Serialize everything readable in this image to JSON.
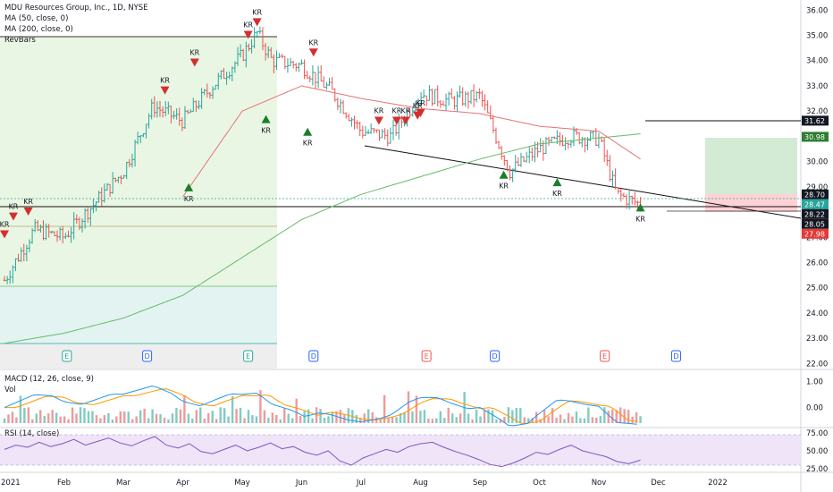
{
  "header": {
    "title": "MDU Resources Group, Inc., 1D, NYSE",
    "ma50": "MA (50, close, 0)",
    "ma200": "MA (200, close, 0)",
    "revbars": "RevBars"
  },
  "macd_panel": {
    "macd_label": "MACD (12, 26, close, 9)",
    "vol_label": "Vol"
  },
  "rsi_panel": {
    "label": "RSI (14, close)"
  },
  "colors": {
    "up": "#26a69a",
    "down": "#ef5350",
    "ma50": "#e57373",
    "ma200": "#66bb6a",
    "macd": "#2196f3",
    "signal": "#ff9800",
    "rsi": "#7e57c2",
    "kr_down": "#d32f2f",
    "kr_up": "#1b7e2a"
  },
  "chart_data": {
    "type": "bar",
    "title": "MDU Resources Group, Inc., 1D, NYSE",
    "price_axis": {
      "ylim": [
        21.8,
        36.4
      ],
      "ticks": [
        "22.00",
        "23.00",
        "24.00",
        "25.00",
        "26.00",
        "27.00",
        "28.00",
        "29.00",
        "30.00",
        "31.00",
        "32.00",
        "33.00",
        "34.00",
        "35.00",
        "36.00"
      ],
      "price_tags": [
        {
          "value": "31.62",
          "style": "dark"
        },
        {
          "value": "30.98",
          "style": "green"
        },
        {
          "value": "28.70",
          "style": "dark"
        },
        {
          "value": "28.47",
          "style": "teal"
        },
        {
          "value": "28.22",
          "style": "dark"
        },
        {
          "value": "28.05",
          "style": "dark"
        },
        {
          "value": "27.98",
          "style": "red"
        }
      ]
    },
    "x_axis": {
      "labels": [
        "2021",
        "Feb",
        "Mar",
        "Apr",
        "May",
        "Jun",
        "Jul",
        "Aug",
        "Sep",
        "Oct",
        "Nov",
        "Dec",
        "2022"
      ],
      "label_months": [
        0,
        1,
        2,
        3,
        4,
        5,
        6,
        7,
        8,
        9,
        10,
        11,
        12
      ]
    },
    "series": [
      {
        "name": "Price (monthly anchors)",
        "x": [
          0,
          0.5,
          1,
          1.5,
          2,
          2.5,
          3,
          3.5,
          4,
          4.25,
          4.5,
          5,
          5.5,
          6,
          6.5,
          7,
          7.5,
          8,
          8.5,
          9,
          9.5,
          10,
          10.3,
          10.7
        ],
        "values": [
          25.3,
          27.3,
          27.0,
          28.3,
          29.6,
          32.2,
          31.6,
          33.0,
          34.2,
          35.1,
          34.0,
          33.8,
          32.8,
          31.2,
          31.0,
          32.7,
          32.4,
          32.6,
          29.6,
          30.5,
          31.0,
          30.9,
          28.7,
          28.3
        ]
      },
      {
        "name": "MA (50, close, 0)",
        "x": [
          3,
          4,
          5,
          6,
          7,
          8,
          9,
          10,
          10.7
        ],
        "values": [
          28.6,
          32.0,
          33.0,
          32.5,
          32.1,
          31.9,
          31.4,
          31.2,
          30.1
        ]
      },
      {
        "name": "MA (200, close, 0)",
        "x": [
          0,
          1,
          2,
          3,
          4,
          5,
          6,
          7,
          8,
          9,
          10.7
        ],
        "values": [
          22.8,
          23.2,
          23.8,
          24.7,
          26.2,
          27.7,
          28.7,
          29.4,
          30.1,
          30.7,
          31.1
        ]
      }
    ],
    "kr_signals": {
      "down": [
        [
          0,
          27.1
        ],
        [
          0.15,
          27.8
        ],
        [
          0.4,
          28.0
        ],
        [
          2.7,
          32.8
        ],
        [
          3.2,
          33.9
        ],
        [
          4.1,
          35.0
        ],
        [
          4.25,
          35.5
        ],
        [
          5.2,
          34.3
        ],
        [
          6.3,
          31.6
        ],
        [
          6.6,
          31.6
        ],
        [
          6.75,
          31.6
        ],
        [
          6.95,
          31.8
        ],
        [
          7.0,
          31.9
        ]
      ],
      "up": [
        [
          4.4,
          31.7
        ],
        [
          5.1,
          31.2
        ],
        [
          3.1,
          29.0
        ],
        [
          8.4,
          29.5
        ],
        [
          9.3,
          29.2
        ],
        [
          10.7,
          28.2
        ]
      ],
      "label": "KR"
    },
    "events": [
      {
        "label": "E",
        "month": 1.05,
        "color": "#26a69a"
      },
      {
        "label": "D",
        "month": 2.4,
        "color": "#2962ff"
      },
      {
        "label": "E",
        "month": 4.1,
        "color": "#26a69a"
      },
      {
        "label": "D",
        "month": 5.2,
        "color": "#2962ff"
      },
      {
        "label": "E",
        "month": 7.1,
        "color": "#ef5350"
      },
      {
        "label": "D",
        "month": 8.25,
        "color": "#2962ff"
      },
      {
        "label": "E",
        "month": 10.1,
        "color": "#ef5350"
      },
      {
        "label": "D",
        "month": 11.3,
        "color": "#2962ff"
      }
    ],
    "macd_axis": {
      "ylim": [
        -0.6,
        1.3
      ],
      "ticks": [
        "1.00",
        "0.00"
      ]
    },
    "rsi_axis": {
      "ylim": [
        20,
        80
      ],
      "ticks": [
        "75.00",
        "50.00",
        "25.00"
      ],
      "bands": [
        30,
        70
      ]
    },
    "rsi_values": [
      52,
      58,
      55,
      62,
      56,
      60,
      66,
      58,
      63,
      68,
      61,
      57,
      64,
      70,
      58,
      54,
      60,
      49,
      46,
      52,
      58,
      50,
      55,
      61,
      53,
      56,
      48,
      44,
      50,
      36,
      30,
      40,
      46,
      52,
      48,
      56,
      60,
      62,
      55,
      49,
      44,
      38,
      31,
      28,
      33,
      40,
      48,
      45,
      52,
      58,
      50,
      46,
      42,
      35,
      32,
      37
    ]
  }
}
